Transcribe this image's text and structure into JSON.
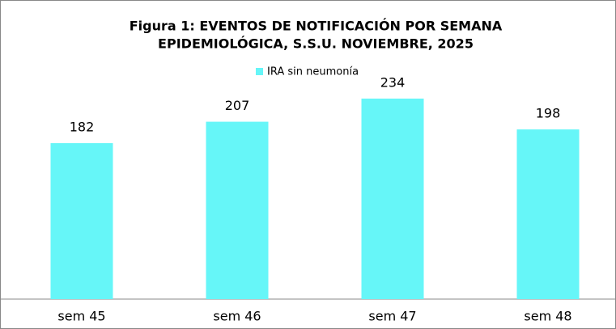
{
  "chart_data": {
    "type": "bar",
    "title": [
      "Figura 1: EVENTOS DE NOTIFICACIÓN POR SEMANA",
      "EPIDEMIOLÓGICA, S.S.U. NOVIEMBRE, 2025"
    ],
    "categories": [
      "sem 45",
      "sem 46",
      "sem 47",
      "sem 48"
    ],
    "series": [
      {
        "name": "IRA sin neumonía",
        "color": "#66f6f8",
        "values": [
          182,
          207,
          234,
          198
        ]
      }
    ],
    "ylim": [
      0,
      250
    ],
    "legend": "top"
  }
}
